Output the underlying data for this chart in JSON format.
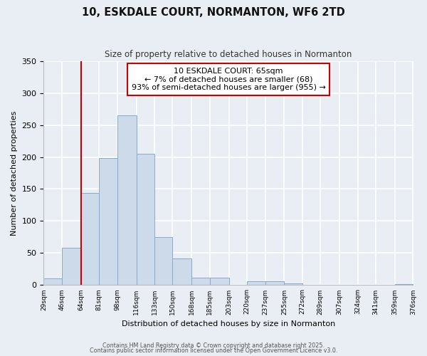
{
  "title": "10, ESKDALE COURT, NORMANTON, WF6 2TD",
  "subtitle": "Size of property relative to detached houses in Normanton",
  "xlabel": "Distribution of detached houses by size in Normanton",
  "ylabel": "Number of detached properties",
  "bar_color": "#ccdaea",
  "bar_edge_color": "#88aacc",
  "vline_x": 64,
  "vline_color": "#cc0000",
  "annotation_title": "10 ESKDALE COURT: 65sqm",
  "annotation_line1": "← 7% of detached houses are smaller (68)",
  "annotation_line2": "93% of semi-detached houses are larger (955) →",
  "annotation_box_color": "#ffffff",
  "annotation_box_edge": "#cc0000",
  "bin_edges": [
    29,
    46,
    64,
    81,
    98,
    116,
    133,
    150,
    168,
    185,
    203,
    220,
    237,
    255,
    272,
    289,
    307,
    324,
    341,
    359,
    376
  ],
  "bin_counts": [
    10,
    58,
    144,
    198,
    265,
    205,
    75,
    42,
    12,
    12,
    0,
    6,
    6,
    3,
    0,
    0,
    0,
    0,
    0,
    2
  ],
  "ylim": [
    0,
    350
  ],
  "yticks": [
    0,
    50,
    100,
    150,
    200,
    250,
    300,
    350
  ],
  "footnote1": "Contains HM Land Registry data © Crown copyright and database right 2025.",
  "footnote2": "Contains public sector information licensed under the Open Government Licence v3.0.",
  "background_color": "#e8eef4"
}
